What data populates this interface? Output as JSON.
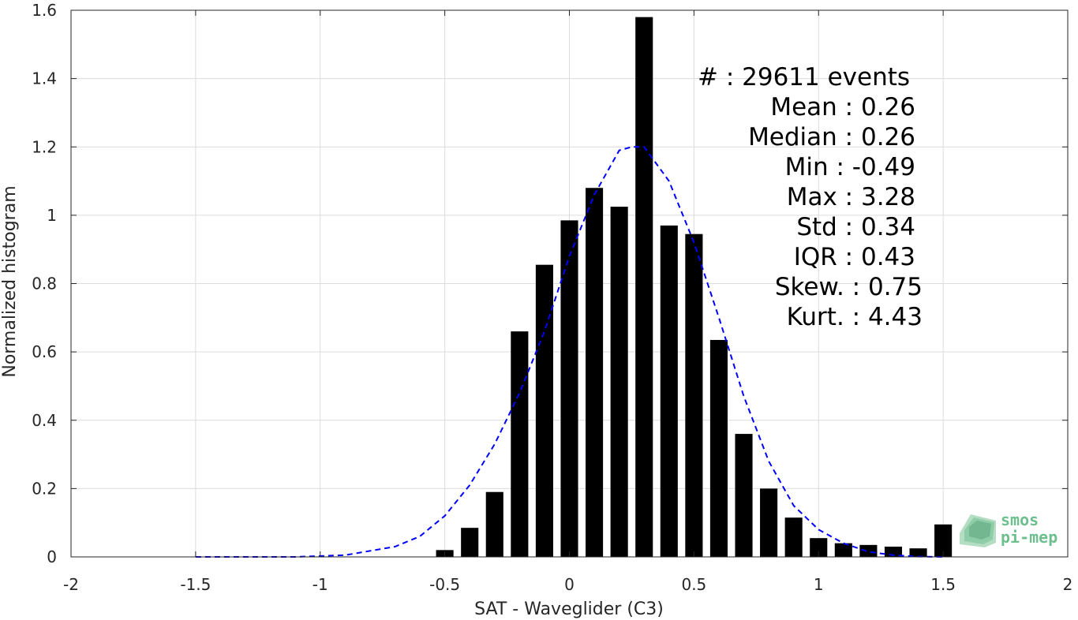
{
  "chart_data": {
    "type": "bar",
    "xlabel": "SAT - Waveglider (C3)",
    "ylabel": "Normalized histogram",
    "xlim": [
      -2,
      2
    ],
    "ylim": [
      0,
      1.6
    ],
    "xticks": [
      "-2",
      "-1.5",
      "-1",
      "-0.5",
      "0",
      "0.5",
      "1",
      "1.5",
      "2"
    ],
    "yticks": [
      "0",
      "0.2",
      "0.4",
      "0.6",
      "0.8",
      "1",
      "1.2",
      "1.4",
      "1.6"
    ],
    "grid": true,
    "bar_color": "#000000",
    "bins": [
      -0.5,
      -0.4,
      -0.3,
      -0.2,
      -0.1,
      0.0,
      0.1,
      0.2,
      0.3,
      0.4,
      0.5,
      0.6,
      0.7,
      0.8,
      0.9,
      1.0,
      1.1,
      1.2,
      1.3,
      1.4,
      1.5
    ],
    "values": [
      0.02,
      0.085,
      0.19,
      0.66,
      0.855,
      0.985,
      1.08,
      1.025,
      1.58,
      0.97,
      0.945,
      0.635,
      0.36,
      0.2,
      0.115,
      0.055,
      0.04,
      0.035,
      0.03,
      0.025,
      0.095
    ],
    "fit_curve": {
      "style": "dashed",
      "color": "#0000ff",
      "x": [
        -1.5,
        -1.3,
        -1.1,
        -0.9,
        -0.7,
        -0.6,
        -0.5,
        -0.4,
        -0.3,
        -0.2,
        -0.1,
        0.0,
        0.1,
        0.2,
        0.25,
        0.3,
        0.4,
        0.5,
        0.6,
        0.7,
        0.8,
        0.9,
        1.0,
        1.1,
        1.2,
        1.3,
        1.4,
        1.5
      ],
      "y": [
        0.0,
        0.0,
        0.0,
        0.005,
        0.03,
        0.06,
        0.12,
        0.21,
        0.33,
        0.48,
        0.66,
        0.88,
        1.06,
        1.19,
        1.2,
        1.2,
        1.1,
        0.92,
        0.7,
        0.47,
        0.28,
        0.15,
        0.08,
        0.04,
        0.015,
        0.005,
        0.001,
        0.0
      ]
    },
    "stats": [
      {
        "label": "#   : 29611 events"
      },
      {
        "label": "Mean : 0.26"
      },
      {
        "label": "Median : 0.26"
      },
      {
        "label": "Min : -0.49"
      },
      {
        "label": "Max : 3.28"
      },
      {
        "label": "Std : 0.34"
      },
      {
        "label": "IQR : 0.43"
      },
      {
        "label": "Skew. : 0.75"
      },
      {
        "label": "Kurt. : 4.43"
      }
    ]
  },
  "logo": {
    "line1": "smos",
    "line2": "pi-mep",
    "color": "#6dbf8e"
  }
}
